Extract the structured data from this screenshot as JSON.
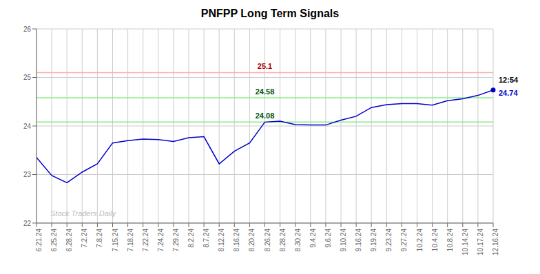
{
  "chart_data": {
    "type": "line",
    "title": "PNFPP Long Term Signals",
    "categories": [
      "6.21.24",
      "6.25.24",
      "6.28.24",
      "7.2.24",
      "7.8.24",
      "7.15.24",
      "7.18.24",
      "7.22.24",
      "7.24.24",
      "7.29.24",
      "8.2.24",
      "8.7.24",
      "8.12.24",
      "8.16.24",
      "8.20.24",
      "8.26.24",
      "8.28.24",
      "8.30.24",
      "9.4.24",
      "9.6.24",
      "9.10.24",
      "9.16.24",
      "9.19.24",
      "9.23.24",
      "9.27.24",
      "10.2.24",
      "10.4.24",
      "10.8.24",
      "10.14.24",
      "10.17.24",
      "12.16.24"
    ],
    "values": [
      23.35,
      22.98,
      22.83,
      23.05,
      23.22,
      23.65,
      23.7,
      23.73,
      23.72,
      23.68,
      23.76,
      23.78,
      23.22,
      23.48,
      23.65,
      24.08,
      24.1,
      24.03,
      24.02,
      24.02,
      24.12,
      24.2,
      24.38,
      24.44,
      24.46,
      24.46,
      24.43,
      24.52,
      24.56,
      24.63,
      24.74
    ],
    "color": "#0000cc",
    "ylim": [
      22.0,
      26.0
    ],
    "yticks": [
      22,
      23,
      24,
      25,
      26
    ],
    "grid": true,
    "hlines": [
      {
        "value": 25.1,
        "label": "25.1",
        "color": "#ffaaaa",
        "label_color": "#aa0000"
      },
      {
        "value": 24.58,
        "label": "24.58",
        "color": "#88ee88",
        "label_color": "#005500"
      },
      {
        "value": 24.08,
        "label": "24.08",
        "color": "#88ee88",
        "label_color": "#005500"
      }
    ],
    "annotations": [
      {
        "text": "12:54",
        "color": "#000000"
      },
      {
        "text": "24.74",
        "color": "#0000cc"
      }
    ],
    "watermark": {
      "text": "Stock Traders Daily",
      "color": "#bbbbbb"
    }
  }
}
